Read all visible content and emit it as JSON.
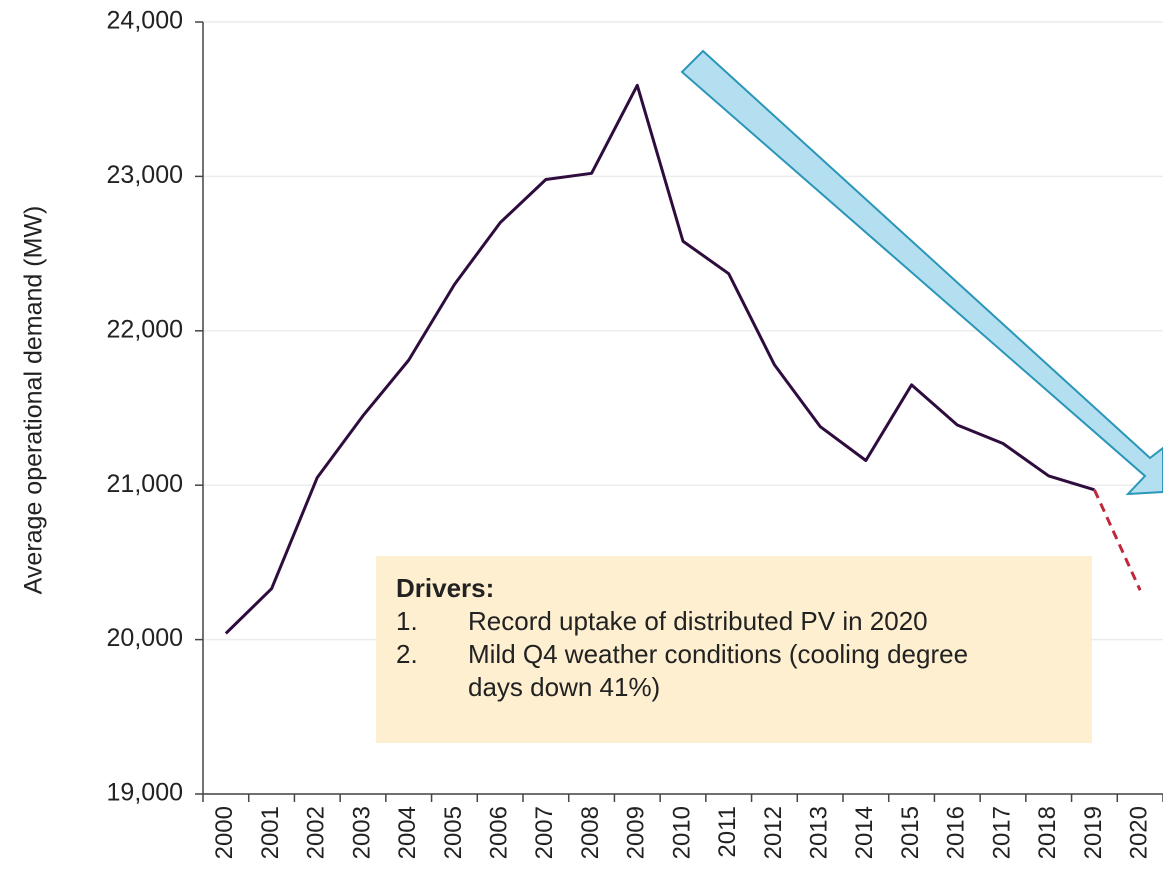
{
  "chart_data": {
    "type": "line",
    "y_label": "Average operational demand (MW)",
    "categories": [
      "2000",
      "2001",
      "2002",
      "2003",
      "2004",
      "2005",
      "2006",
      "2007",
      "2008",
      "2009",
      "2010",
      "2011",
      "2012",
      "2013",
      "2014",
      "2015",
      "2016",
      "2017",
      "2018",
      "2019",
      "2020"
    ],
    "series": [
      {
        "color": "#2e0d3e",
        "dashed": false,
        "values": [
          20040,
          20330,
          21050,
          21450,
          21810,
          22300,
          22700,
          22980,
          23020,
          23590,
          22580,
          22370,
          21780,
          21380,
          21160,
          21650,
          21390,
          21270,
          21060,
          20970,
          null
        ]
      },
      {
        "color": "#c0283a",
        "dashed": true,
        "values": [
          null,
          null,
          null,
          null,
          null,
          null,
          null,
          null,
          null,
          null,
          null,
          null,
          null,
          null,
          null,
          null,
          null,
          null,
          null,
          20970,
          20320
        ]
      }
    ],
    "ylim": [
      19000,
      24000
    ],
    "yticks": [
      {
        "value": 19000,
        "label": "19,000"
      },
      {
        "value": 20000,
        "label": "20,000"
      },
      {
        "value": 21000,
        "label": "21,000"
      },
      {
        "value": 22000,
        "label": "22,000"
      },
      {
        "value": 23000,
        "label": "23,000"
      },
      {
        "value": 24000,
        "label": "24,000"
      }
    ],
    "grid": true,
    "annotation": {
      "title": "Drivers:",
      "items": [
        {
          "number": "1.",
          "text": "Record uptake of distributed PV in 2020"
        },
        {
          "number": "2.",
          "text": "Mild Q4 weather conditions (cooling degree days down 41%)"
        }
      ]
    }
  }
}
